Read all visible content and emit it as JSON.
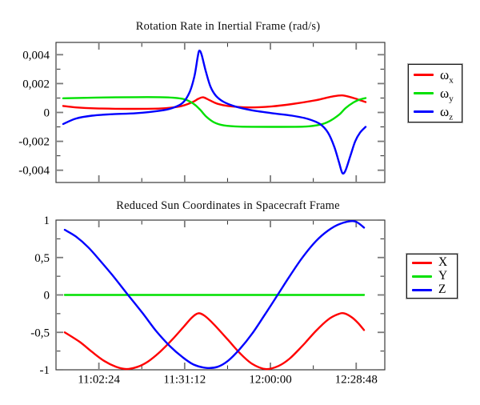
{
  "window": {
    "background": "#ffffff",
    "frame_color": "#3a3a3a",
    "major_tick_color": "#7a7a7a",
    "minor_tick_color": "#2b2b2b"
  },
  "chart_data": [
    {
      "type": "line",
      "title": "Rotation Rate in Inertial Frame (rad/s)",
      "legend_position": "right-outside",
      "grid": false,
      "x_axis": {
        "min": 38880,
        "max": 45504,
        "show_labels": false,
        "major_ticks": [
          {
            "t": 39744,
            "label": "11:02:24"
          },
          {
            "t": 41472,
            "label": "11:31:12"
          },
          {
            "t": 43200,
            "label": "12:00:00"
          },
          {
            "t": 44928,
            "label": "12:28:48"
          }
        ],
        "minor_ticks": [
          40608,
          42336,
          44064
        ]
      },
      "y_axis": {
        "min": -0.00485,
        "max": 0.00485,
        "major_ticks": [
          {
            "v": 0.004,
            "label": "0,004"
          },
          {
            "v": 0.002,
            "label": "0,002"
          },
          {
            "v": 0,
            "label": "0"
          },
          {
            "v": -0.002,
            "label": "-0,002"
          },
          {
            "v": -0.004,
            "label": "-0,004"
          }
        ],
        "minor_ticks": [
          0.003,
          0.001,
          -0.001,
          -0.003
        ]
      },
      "series": [
        {
          "key": "omega-x",
          "label_base": "ω",
          "label_sub": "x",
          "color": "#ff0000",
          "points": [
            [
              39025,
              0.00045
            ],
            [
              39283,
              0.00035
            ],
            [
              39686,
              0.00028
            ],
            [
              40331,
              0.00025
            ],
            [
              40975,
              0.00027
            ],
            [
              41378,
              0.00042
            ],
            [
              41620,
              0.0007
            ],
            [
              41749,
              0.00095
            ],
            [
              41846,
              0.00105
            ],
            [
              41975,
              0.00085
            ],
            [
              42136,
              0.0006
            ],
            [
              42345,
              0.00045
            ],
            [
              42748,
              0.00035
            ],
            [
              43231,
              0.00042
            ],
            [
              43634,
              0.00058
            ],
            [
              44118,
              0.00085
            ],
            [
              44440,
              0.0011
            ],
            [
              44650,
              0.00118
            ],
            [
              44875,
              0.001
            ],
            [
              45004,
              0.00085
            ],
            [
              45117,
              0.00072
            ]
          ]
        },
        {
          "key": "omega-y",
          "label_base": "ω",
          "label_sub": "y",
          "color": "#00e000",
          "points": [
            [
              39025,
              0.00098
            ],
            [
              39686,
              0.00103
            ],
            [
              40492,
              0.00106
            ],
            [
              41136,
              0.00104
            ],
            [
              41459,
              0.00092
            ],
            [
              41652,
              0.0006
            ],
            [
              41781,
              0.0002
            ],
            [
              41910,
              -0.0003
            ],
            [
              42071,
              -0.0007
            ],
            [
              42265,
              -0.0009
            ],
            [
              42587,
              -0.00098
            ],
            [
              43231,
              -0.001
            ],
            [
              43876,
              -0.00098
            ],
            [
              44198,
              -0.00085
            ],
            [
              44392,
              -0.0006
            ],
            [
              44585,
              -0.00015
            ],
            [
              44714,
              0.0003
            ],
            [
              44875,
              0.0007
            ],
            [
              45004,
              0.0009
            ],
            [
              45117,
              0.001
            ]
          ]
        },
        {
          "key": "omega-z",
          "label_base": "ω",
          "label_sub": "z",
          "color": "#0000ff",
          "points": [
            [
              39025,
              -0.0008
            ],
            [
              39283,
              -0.00042
            ],
            [
              39605,
              -0.00022
            ],
            [
              40009,
              -0.00012
            ],
            [
              40492,
              -5e-05
            ],
            [
              40975,
              0.00012
            ],
            [
              41217,
              0.0003
            ],
            [
              41427,
              0.00065
            ],
            [
              41572,
              0.0014
            ],
            [
              41668,
              0.0025
            ],
            [
              41733,
              0.0038
            ],
            [
              41765,
              0.00428
            ],
            [
              41813,
              0.004
            ],
            [
              41894,
              0.0029
            ],
            [
              41991,
              0.0018
            ],
            [
              42104,
              0.00115
            ],
            [
              42265,
              0.00072
            ],
            [
              42507,
              0.0004
            ],
            [
              42829,
              0.00015
            ],
            [
              43231,
              -5e-05
            ],
            [
              43634,
              -0.00022
            ],
            [
              43957,
              -0.00045
            ],
            [
              44198,
              -0.0008
            ],
            [
              44360,
              -0.0014
            ],
            [
              44489,
              -0.0024
            ],
            [
              44585,
              -0.0035
            ],
            [
              44650,
              -0.0042
            ],
            [
              44714,
              -0.004
            ],
            [
              44811,
              -0.003
            ],
            [
              44907,
              -0.002
            ],
            [
              45004,
              -0.0014
            ],
            [
              45117,
              -0.001
            ]
          ]
        }
      ]
    },
    {
      "type": "line",
      "title": "Reduced Sun Coordinates in Spacecraft Frame",
      "legend_position": "right-outside",
      "grid": false,
      "x_axis": {
        "min": 38880,
        "max": 45504,
        "show_labels": true,
        "major_ticks": [
          {
            "t": 39744,
            "label": "11:02:24"
          },
          {
            "t": 41472,
            "label": "11:31:12"
          },
          {
            "t": 43200,
            "label": "12:00:00"
          },
          {
            "t": 44928,
            "label": "12:28:48"
          }
        ],
        "minor_ticks": [
          40608,
          42336,
          44064
        ]
      },
      "y_axis": {
        "min": -1,
        "max": 1,
        "major_ticks": [
          {
            "v": 1,
            "label": "1"
          },
          {
            "v": 0.5,
            "label": "0,5"
          },
          {
            "v": 0,
            "label": "0"
          },
          {
            "v": -0.5,
            "label": "-0,5"
          },
          {
            "v": -1,
            "label": "-1"
          }
        ],
        "minor_ticks": [
          0.75,
          0.25,
          -0.25,
          -0.75
        ]
      },
      "series": [
        {
          "key": "x",
          "label_base": "X",
          "label_sub": "",
          "color": "#ff0000",
          "points": [
            [
              39057,
              -0.5
            ],
            [
              39363,
              -0.63
            ],
            [
              39605,
              -0.76
            ],
            [
              39847,
              -0.88
            ],
            [
              40089,
              -0.96
            ],
            [
              40298,
              -0.99
            ],
            [
              40524,
              -0.96
            ],
            [
              40733,
              -0.89
            ],
            [
              40975,
              -0.76
            ],
            [
              41217,
              -0.6
            ],
            [
              41459,
              -0.42
            ],
            [
              41620,
              -0.3
            ],
            [
              41749,
              -0.245
            ],
            [
              41878,
              -0.28
            ],
            [
              42071,
              -0.4
            ],
            [
              42345,
              -0.6
            ],
            [
              42587,
              -0.78
            ],
            [
              42829,
              -0.92
            ],
            [
              43103,
              -0.99
            ],
            [
              43361,
              -0.95
            ],
            [
              43587,
              -0.85
            ],
            [
              43844,
              -0.68
            ],
            [
              44118,
              -0.48
            ],
            [
              44360,
              -0.33
            ],
            [
              44553,
              -0.26
            ],
            [
              44682,
              -0.245
            ],
            [
              44843,
              -0.3
            ],
            [
              44972,
              -0.38
            ],
            [
              45085,
              -0.47
            ]
          ]
        },
        {
          "key": "y",
          "label_base": "Y",
          "label_sub": "",
          "color": "#00e000",
          "points": [
            [
              39057,
              0
            ],
            [
              45085,
              0
            ]
          ]
        },
        {
          "key": "z",
          "label_base": "Z",
          "label_sub": "",
          "color": "#0000ff",
          "points": [
            [
              39057,
              0.87
            ],
            [
              39283,
              0.78
            ],
            [
              39524,
              0.64
            ],
            [
              39766,
              0.46
            ],
            [
              40009,
              0.27
            ],
            [
              40331,
              0
            ],
            [
              40621,
              -0.24
            ],
            [
              40895,
              -0.48
            ],
            [
              41169,
              -0.68
            ],
            [
              41427,
              -0.83
            ],
            [
              41652,
              -0.93
            ],
            [
              41910,
              -0.975
            ],
            [
              42136,
              -0.96
            ],
            [
              42345,
              -0.88
            ],
            [
              42587,
              -0.72
            ],
            [
              42829,
              -0.52
            ],
            [
              43071,
              -0.28
            ],
            [
              43345,
              0
            ],
            [
              43587,
              0.25
            ],
            [
              43844,
              0.5
            ],
            [
              44118,
              0.72
            ],
            [
              44360,
              0.86
            ],
            [
              44601,
              0.95
            ],
            [
              44891,
              0.985
            ],
            [
              45085,
              0.9
            ]
          ]
        }
      ]
    }
  ]
}
